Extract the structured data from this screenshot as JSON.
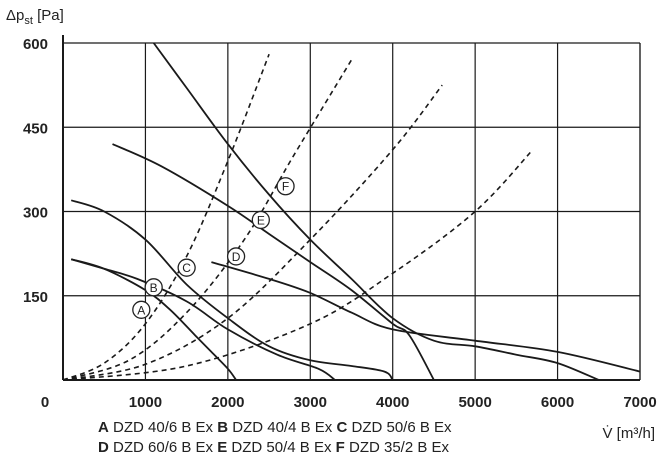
{
  "chart_data": {
    "type": "line",
    "ylabel": "Δp<sub>st</sub> [Pa]",
    "ylabel_main": "Δp",
    "ylabel_sub": "st",
    "ylabel_unit": "[Pa]",
    "xlabel": "V̇ [m³/h]",
    "xlim": [
      0,
      7000
    ],
    "ylim": [
      0,
      600
    ],
    "x_ticks": [
      0,
      1000,
      2000,
      3000,
      4000,
      5000,
      6000,
      7000
    ],
    "x_tick_labels": [
      "0",
      "1000",
      "2000",
      "3000",
      "4000",
      "5000",
      "6000",
      "7000"
    ],
    "y_ticks": [
      150,
      300,
      450,
      600
    ],
    "y_tick_labels": [
      "150",
      "300",
      "450",
      "600"
    ],
    "grid": true,
    "series": [
      {
        "name": "A",
        "values": [
          [
            100,
            215
          ],
          [
            500,
            198
          ],
          [
            1000,
            160
          ],
          [
            1300,
            125
          ],
          [
            1600,
            80
          ],
          [
            1800,
            50
          ],
          [
            2000,
            20
          ],
          [
            2100,
            0
          ]
        ]
      },
      {
        "name": "B",
        "values": [
          [
            100,
            215
          ],
          [
            500,
            198
          ],
          [
            900,
            180
          ],
          [
            1500,
            140
          ],
          [
            2000,
            90
          ],
          [
            2600,
            45
          ],
          [
            3100,
            20
          ],
          [
            3300,
            0
          ]
        ]
      },
      {
        "name": "C",
        "values": [
          [
            100,
            320
          ],
          [
            500,
            300
          ],
          [
            1000,
            250
          ],
          [
            1500,
            170
          ],
          [
            2000,
            110
          ],
          [
            2500,
            60
          ],
          [
            3000,
            35
          ],
          [
            3500,
            25
          ],
          [
            3900,
            15
          ],
          [
            4000,
            0
          ]
        ]
      },
      {
        "name": "D",
        "values": [
          [
            1800,
            210
          ],
          [
            2500,
            180
          ],
          [
            3000,
            155
          ],
          [
            3500,
            120
          ],
          [
            4000,
            90
          ],
          [
            5000,
            70
          ],
          [
            6000,
            50
          ],
          [
            7000,
            15
          ]
        ]
      },
      {
        "name": "E",
        "values": [
          [
            600,
            420
          ],
          [
            1200,
            380
          ],
          [
            2000,
            310
          ],
          [
            2500,
            260
          ],
          [
            3000,
            210
          ],
          [
            3500,
            160
          ],
          [
            4000,
            100
          ],
          [
            4200,
            80
          ],
          [
            4500,
            0
          ]
        ]
      },
      {
        "name": "F",
        "values": [
          [
            1100,
            600
          ],
          [
            1500,
            520
          ],
          [
            2000,
            420
          ],
          [
            2500,
            330
          ],
          [
            3000,
            250
          ],
          [
            3500,
            180
          ],
          [
            4000,
            110
          ],
          [
            4500,
            70
          ],
          [
            5000,
            60
          ],
          [
            5500,
            45
          ],
          [
            6000,
            30
          ],
          [
            6500,
            0
          ]
        ]
      }
    ],
    "system_curves": [
      {
        "values": [
          [
            0,
            0
          ],
          [
            500,
            30
          ],
          [
            1000,
            100
          ],
          [
            1500,
            220
          ],
          [
            2000,
            390
          ],
          [
            2500,
            580
          ]
        ]
      },
      {
        "values": [
          [
            0,
            0
          ],
          [
            800,
            35
          ],
          [
            1500,
            120
          ],
          [
            2200,
            250
          ],
          [
            2800,
            400
          ],
          [
            3500,
            570
          ]
        ]
      },
      {
        "values": [
          [
            0,
            0
          ],
          [
            1000,
            28
          ],
          [
            2000,
            110
          ],
          [
            3000,
            250
          ],
          [
            4000,
            410
          ],
          [
            4600,
            525
          ]
        ]
      },
      {
        "values": [
          [
            0,
            0
          ],
          [
            1500,
            25
          ],
          [
            3000,
            100
          ],
          [
            4000,
            190
          ],
          [
            5000,
            300
          ],
          [
            5700,
            410
          ]
        ]
      }
    ],
    "curve_labels": [
      {
        "text": "A",
        "x": 950,
        "y": 125
      },
      {
        "text": "B",
        "x": 1100,
        "y": 165
      },
      {
        "text": "C",
        "x": 1500,
        "y": 200
      },
      {
        "text": "D",
        "x": 2100,
        "y": 220
      },
      {
        "text": "E",
        "x": 2400,
        "y": 285
      },
      {
        "text": "F",
        "x": 2700,
        "y": 345
      }
    ],
    "legend": [
      {
        "letter": "A",
        "text": "DZD 40/6 B Ex"
      },
      {
        "letter": "B",
        "text": "DZD 40/4 B Ex"
      },
      {
        "letter": "C",
        "text": "DZD 50/6 B Ex"
      },
      {
        "letter": "D",
        "text": "DZD 60/6 B Ex"
      },
      {
        "letter": "E",
        "text": "DZD 50/4 B Ex"
      },
      {
        "letter": "F",
        "text": "DZD 35/2 B Ex"
      }
    ],
    "colors": {
      "curve": "#1a1a1a",
      "grid": "#1a1a1a",
      "system": "#1a1a1a"
    }
  }
}
